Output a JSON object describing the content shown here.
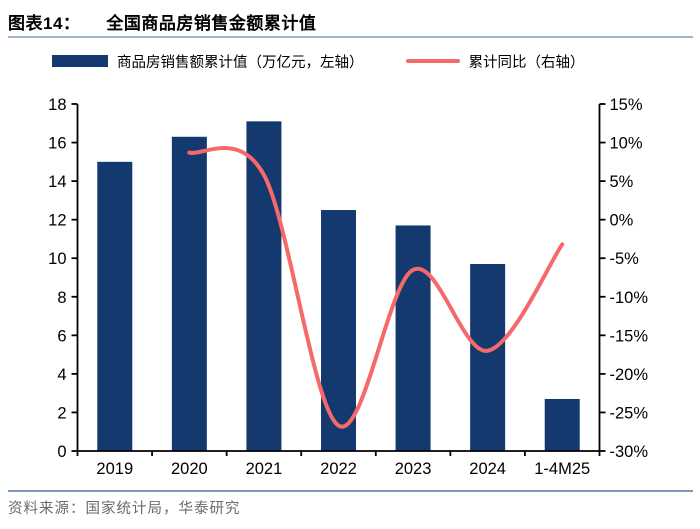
{
  "header": {
    "figure_label": "图表14：",
    "title": "全国商品房销售金额累计值"
  },
  "legend": [
    {
      "type": "bar",
      "label": "商品房销售额累计值（万亿元，左轴）",
      "color": "#14396E"
    },
    {
      "type": "line",
      "label": "累计同比（右轴）",
      "color": "#F5696B"
    }
  ],
  "footer": {
    "source": "资料来源：国家统计局，华泰研究"
  },
  "colors": {
    "bar": "#14396E",
    "line": "#F5696B",
    "axis": "#000000",
    "title_rule": "#9FB4CE",
    "footer_rule": "#7C99BD",
    "footer_text": "#6B6B6B"
  },
  "chart_data": {
    "type": "bar",
    "subtype": "bar+line combo",
    "title": "全国商品房销售金额累计值",
    "categories": [
      "2019",
      "2020",
      "2021",
      "2022",
      "2023",
      "2024",
      "1-4M25"
    ],
    "series": [
      {
        "name": "商品房销售额累计值（万亿元，左轴）",
        "type": "bar",
        "axis": "left",
        "color": "#14396E",
        "values": [
          15.0,
          16.3,
          17.1,
          12.5,
          11.7,
          9.7,
          2.7
        ]
      },
      {
        "name": "累计同比（右轴）",
        "type": "line",
        "axis": "right",
        "color": "#F5696B",
        "smooth": true,
        "values": [
          null,
          8.7,
          5.8,
          -26.7,
          -6.5,
          -17.0,
          -3.2
        ]
      }
    ],
    "left_axis": {
      "min": 0,
      "max": 18,
      "step": 2,
      "tick_labels": [
        "0",
        "2",
        "4",
        "6",
        "8",
        "10",
        "12",
        "14",
        "16",
        "18"
      ]
    },
    "right_axis": {
      "min": -30,
      "max": 15,
      "step": 5,
      "tick_labels": [
        "-30%",
        "-25%",
        "-20%",
        "-15%",
        "-10%",
        "-5%",
        "0%",
        "5%",
        "10%",
        "15%"
      ]
    },
    "grid": false,
    "legend_position": "top"
  }
}
